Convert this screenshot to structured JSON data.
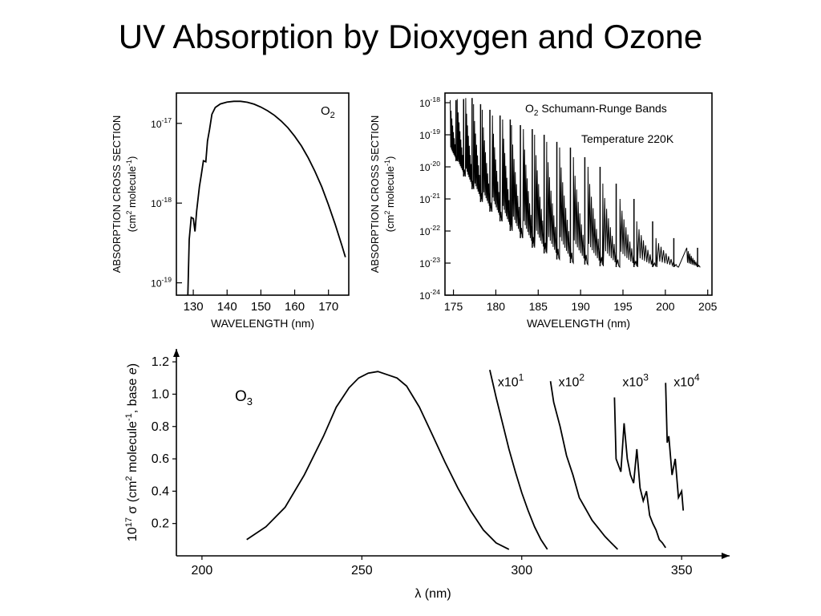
{
  "slide": {
    "title": "UV Absorption by Dioxygen and Ozone"
  },
  "colors": {
    "ink": "#000000",
    "background": "#ffffff"
  },
  "chart_data": [
    {
      "type": "line",
      "title": "",
      "legend": "O2",
      "xlabel": "WAVELENGTH (nm)",
      "ylabel": "ABSORPTION CROSS SECTION",
      "ylabel_units": "(cm2 molecule-1)",
      "y_scale": "log",
      "xlim": [
        125,
        176
      ],
      "ylim": [
        7e-20,
        2.4e-17
      ],
      "x_ticks": [
        130,
        140,
        150,
        160,
        170
      ],
      "x_tick_labels": [
        "130",
        "140",
        "150",
        "160",
        "170"
      ],
      "y_ticks": [
        1e-19,
        1e-18,
        1e-17
      ],
      "y_tick_labels": [
        {
          "base": "10",
          "exp": "-19"
        },
        {
          "base": "10",
          "exp": "-18"
        },
        {
          "base": "10",
          "exp": "-17"
        }
      ],
      "series": [
        {
          "x": [
            128.4,
            128.8,
            129.4,
            130,
            130.5,
            131,
            131.8,
            132.4,
            133,
            133.7,
            134.2,
            134.8,
            135.5,
            136.5,
            138,
            140,
            142,
            144,
            146,
            148,
            150,
            152,
            154,
            156,
            158,
            160,
            162,
            164,
            166,
            168,
            170,
            172,
            174,
            175
          ],
          "y": [
            7e-20,
            3.5e-19,
            6.6e-19,
            6.4e-19,
            4.4e-19,
            8e-19,
            1.6e-18,
            2.3e-18,
            3.4e-18,
            3.3e-18,
            6e-18,
            8.3e-18,
            1.3e-17,
            1.58e-17,
            1.75e-17,
            1.85e-17,
            1.89e-17,
            1.89e-17,
            1.84e-17,
            1.74e-17,
            1.6e-17,
            1.44e-17,
            1.26e-17,
            1.07e-17,
            8.8e-18,
            6.9e-18,
            5.2e-18,
            3.7e-18,
            2.5e-18,
            1.6e-18,
            9.5e-19,
            5.4e-19,
            2.9e-19,
            2.1e-19
          ]
        }
      ]
    },
    {
      "type": "line",
      "title": "O2 Schumann-Runge Bands",
      "annotation": "Temperature 220K",
      "xlabel": "WAVELENGTH (nm)",
      "ylabel": "ABSORPTION CROSS SECTION",
      "ylabel_units": "(cm2 molecule-1)",
      "y_scale": "log",
      "xlim": [
        174,
        205.5
      ],
      "ylim": [
        1e-24,
        2e-18
      ],
      "x_ticks": [
        175,
        180,
        185,
        190,
        195,
        200,
        205
      ],
      "x_tick_labels": [
        "175",
        "180",
        "185",
        "190",
        "195",
        "200",
        "205"
      ],
      "y_ticks": [
        1e-24,
        1e-23,
        1e-22,
        1e-21,
        1e-20,
        1e-19,
        1e-18
      ],
      "y_tick_labels": [
        {
          "base": "10",
          "exp": "-24"
        },
        {
          "base": "10",
          "exp": "-23"
        },
        {
          "base": "10",
          "exp": "-22"
        },
        {
          "base": "10",
          "exp": "-21"
        },
        {
          "base": "10",
          "exp": "-20"
        },
        {
          "base": "10",
          "exp": "-19"
        },
        {
          "base": "10",
          "exp": "-18"
        }
      ],
      "series": [
        {
          "band_heads_x": [
            175.3,
            176.2,
            177.2,
            178.2,
            179.3,
            180.5,
            181.7,
            182.9,
            184.3,
            185.7,
            187.2,
            188.8,
            190.5,
            192.3,
            194.2,
            196.3,
            198.5,
            201.0,
            203.8
          ],
          "band_peaks_y": [
            1.2e-18,
            1.3e-18,
            1.4e-18,
            9e-19,
            6e-19,
            4e-19,
            3e-19,
            2e-19,
            1.5e-19,
            1e-19,
            6e-20,
            4e-20,
            2e-20,
            1e-20,
            3e-21,
            1e-21,
            2e-22,
            6e-23,
            3e-23
          ],
          "band_floors_y": [
            1.5e-20,
            5e-21,
            2e-21,
            8e-22,
            4e-22,
            2e-22,
            1e-22,
            6e-23,
            3e-23,
            2e-23,
            1.3e-23,
            1e-23,
            9e-24,
            8e-24,
            7.5e-24,
            7.5e-24,
            7.5e-24,
            7.5e-24,
            7.5e-24
          ]
        }
      ]
    },
    {
      "type": "line",
      "title": "",
      "legend": "O3",
      "xlabel": "λ (nm)",
      "ylabel": "10^17 σ (cm2 molecule-1, base e)",
      "xlim": [
        192,
        365
      ],
      "ylim": [
        0,
        1.28
      ],
      "x_ticks": [
        200,
        250,
        300,
        350
      ],
      "x_tick_labels": [
        "200",
        "250",
        "300",
        "350"
      ],
      "y_ticks": [
        0.2,
        0.4,
        0.6,
        0.8,
        1.0,
        1.2
      ],
      "y_tick_labels": [
        "0.2",
        "0.4",
        "0.6",
        "0.8",
        "1.0",
        "1.2"
      ],
      "series": [
        {
          "name": "",
          "x": [
            214,
            220,
            226,
            232,
            238,
            242,
            246,
            249,
            252,
            255,
            258,
            261,
            264,
            268,
            272,
            276,
            280,
            284,
            288,
            292,
            296
          ],
          "y": [
            0.1,
            0.18,
            0.3,
            0.5,
            0.74,
            0.92,
            1.04,
            1.1,
            1.13,
            1.14,
            1.12,
            1.1,
            1.05,
            0.92,
            0.75,
            0.58,
            0.42,
            0.28,
            0.16,
            0.08,
            0.04
          ]
        },
        {
          "name": "x10",
          "x": [
            290,
            292,
            294,
            296,
            298,
            300,
            302,
            304,
            306,
            308
          ],
          "y": [
            1.15,
            0.98,
            0.82,
            0.66,
            0.52,
            0.39,
            0.28,
            0.18,
            0.1,
            0.04
          ]
        },
        {
          "name": "x10",
          "x": [
            309,
            310,
            312,
            314,
            316,
            318,
            320,
            322,
            324,
            326,
            328,
            330
          ],
          "y": [
            1.08,
            0.95,
            0.8,
            0.62,
            0.5,
            0.36,
            0.29,
            0.22,
            0.17,
            0.12,
            0.08,
            0.04
          ]
        },
        {
          "name": "x10",
          "x": [
            329,
            329.5,
            331,
            332,
            333,
            334,
            335,
            336,
            337,
            338,
            339,
            340,
            341,
            342,
            343,
            344,
            345
          ],
          "y": [
            0.98,
            0.6,
            0.52,
            0.82,
            0.6,
            0.5,
            0.45,
            0.66,
            0.42,
            0.34,
            0.4,
            0.25,
            0.2,
            0.16,
            0.1,
            0.08,
            0.05
          ]
        },
        {
          "name": "x10",
          "x": [
            345,
            345.5,
            346,
            347,
            348,
            349,
            350,
            350.5
          ],
          "y": [
            1.07,
            0.7,
            0.74,
            0.5,
            0.6,
            0.36,
            0.4,
            0.28
          ]
        }
      ],
      "scale_labels": [
        {
          "base": "x10",
          "exp": "1",
          "x": 291
        },
        {
          "base": "x10",
          "exp": "2",
          "x": 310
        },
        {
          "base": "x10",
          "exp": "3",
          "x": 330
        },
        {
          "base": "x10",
          "exp": "4",
          "x": 346
        }
      ]
    }
  ],
  "labels": {
    "o2_legend": {
      "base": "O",
      "sub": "2"
    },
    "sr_title": {
      "o": "O",
      "sub": "2",
      "rest": " Schumann-Runge Bands"
    },
    "sr_temp": "Temperature 220K",
    "o3_legend": {
      "base": "O",
      "sub": "3"
    },
    "axis_y_ac": "ABSORPTION CROSS SECTION",
    "axis_y_units": {
      "a": "(cm",
      "sup1": "2",
      "b": " molecule",
      "sup2": "-1",
      "c": ")"
    },
    "axis_x_wavelength": "WAVELENGTH (nm)",
    "o3_xlabel": "λ (nm)",
    "o3_ylabel": {
      "a": "10",
      "sup1": "17",
      "b": " σ (cm",
      "sup2": "2",
      "c": " molecule",
      "sup3": "-1",
      "d": ", base ",
      "e": "e",
      "f": ")"
    }
  }
}
